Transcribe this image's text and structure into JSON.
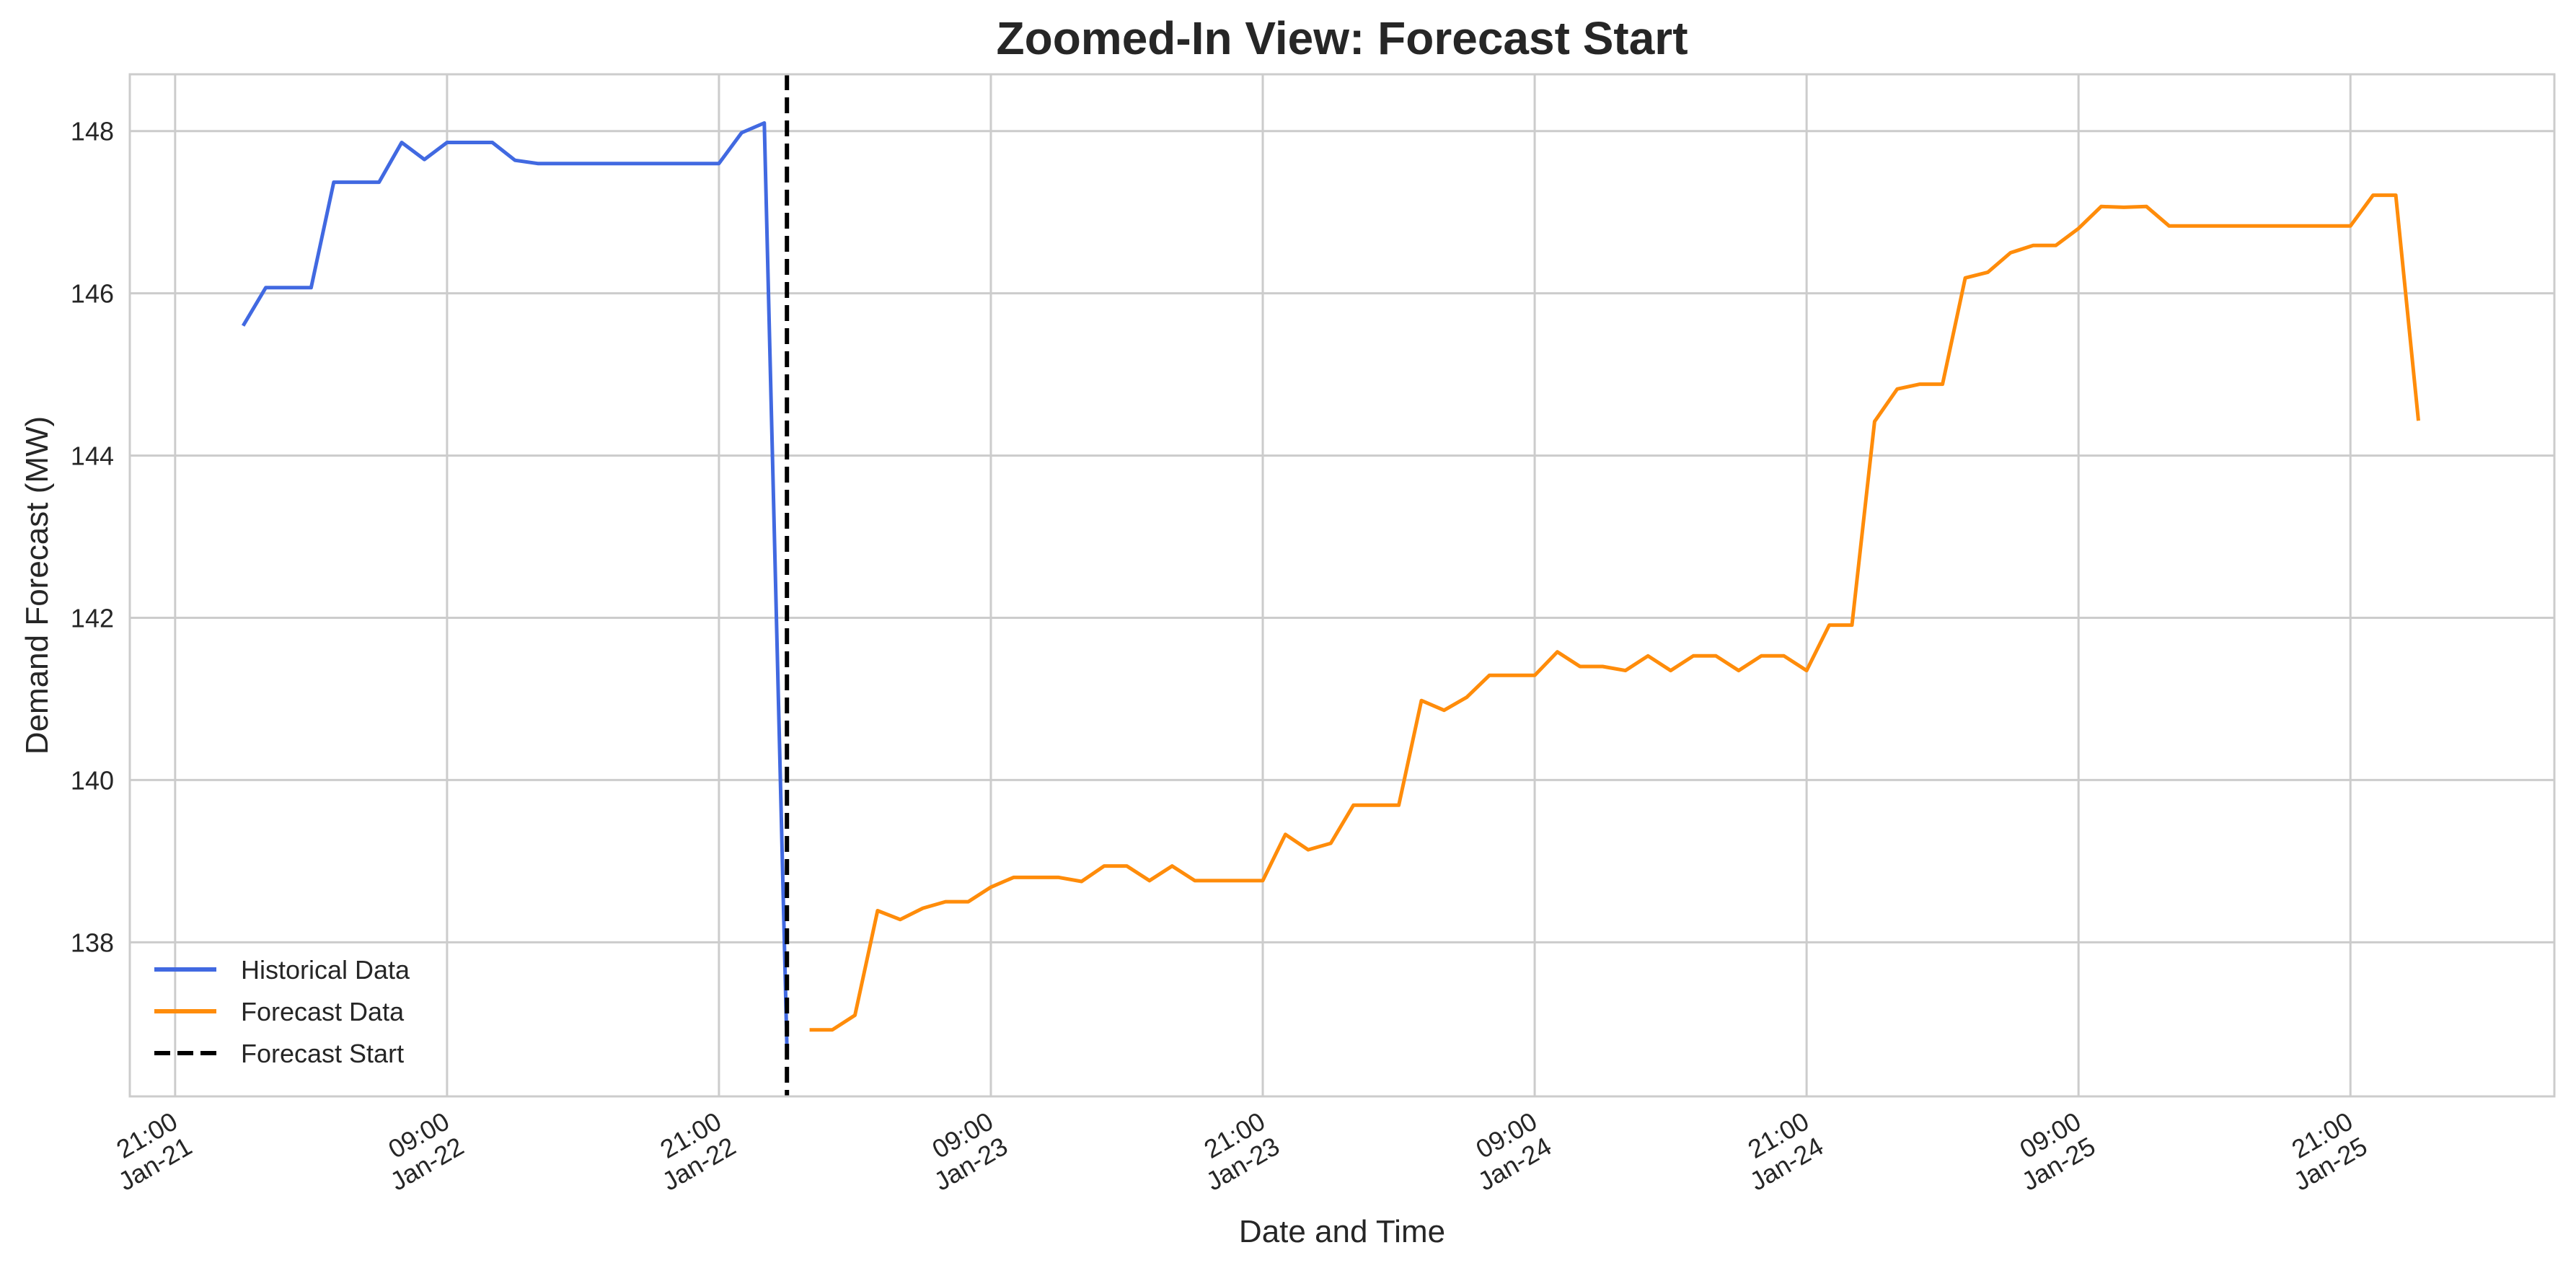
{
  "chart_data": {
    "type": "line",
    "title": "Zoomed-In View: Forecast Start",
    "xlabel": "Date and Time",
    "ylabel": "Demand Forecast (MW)",
    "x_unit": "datetime",
    "xlim": [
      "2025-01-21T19:00",
      "2025-01-26T06:00"
    ],
    "ylim": [
      136.1,
      148.7
    ],
    "y_ticks": [
      138,
      140,
      142,
      144,
      146,
      148
    ],
    "x_ticks": [
      {
        "t": "2025-01-21T21:00",
        "line1": "21:00",
        "line2": "Jan-21"
      },
      {
        "t": "2025-01-22T09:00",
        "line1": "09:00",
        "line2": "Jan-22"
      },
      {
        "t": "2025-01-22T21:00",
        "line1": "21:00",
        "line2": "Jan-22"
      },
      {
        "t": "2025-01-23T09:00",
        "line1": "09:00",
        "line2": "Jan-23"
      },
      {
        "t": "2025-01-23T21:00",
        "line1": "21:00",
        "line2": "Jan-23"
      },
      {
        "t": "2025-01-24T09:00",
        "line1": "09:00",
        "line2": "Jan-24"
      },
      {
        "t": "2025-01-24T21:00",
        "line1": "21:00",
        "line2": "Jan-24"
      },
      {
        "t": "2025-01-25T09:00",
        "line1": "09:00",
        "line2": "Jan-25"
      },
      {
        "t": "2025-01-25T21:00",
        "line1": "21:00",
        "line2": "Jan-25"
      }
    ],
    "grid": true,
    "legend_position": "bottom-left",
    "series": [
      {
        "name": "Historical Data",
        "color": "#4169e1",
        "style": "solid",
        "points": [
          [
            "2025-01-22T00:00",
            145.6
          ],
          [
            "2025-01-22T01:00",
            146.07
          ],
          [
            "2025-01-22T02:00",
            146.07
          ],
          [
            "2025-01-22T03:00",
            146.07
          ],
          [
            "2025-01-22T04:00",
            147.37
          ],
          [
            "2025-01-22T05:00",
            147.37
          ],
          [
            "2025-01-22T06:00",
            147.37
          ],
          [
            "2025-01-22T07:00",
            147.86
          ],
          [
            "2025-01-22T08:00",
            147.65
          ],
          [
            "2025-01-22T09:00",
            147.86
          ],
          [
            "2025-01-22T10:00",
            147.86
          ],
          [
            "2025-01-22T11:00",
            147.86
          ],
          [
            "2025-01-22T12:00",
            147.64
          ],
          [
            "2025-01-22T13:00",
            147.6
          ],
          [
            "2025-01-22T14:00",
            147.6
          ],
          [
            "2025-01-22T15:00",
            147.6
          ],
          [
            "2025-01-22T16:00",
            147.6
          ],
          [
            "2025-01-22T17:00",
            147.6
          ],
          [
            "2025-01-22T18:00",
            147.6
          ],
          [
            "2025-01-22T19:00",
            147.6
          ],
          [
            "2025-01-22T20:00",
            147.6
          ],
          [
            "2025-01-22T21:00",
            147.6
          ],
          [
            "2025-01-22T22:00",
            147.98
          ],
          [
            "2025-01-22T23:00",
            148.1
          ],
          [
            "2025-01-23T00:00",
            136.7
          ]
        ]
      },
      {
        "name": "Forecast Data",
        "color": "#ff8c0a",
        "style": "solid",
        "points": [
          [
            "2025-01-23T01:00",
            136.92
          ],
          [
            "2025-01-23T02:00",
            136.92
          ],
          [
            "2025-01-23T03:00",
            137.1
          ],
          [
            "2025-01-23T04:00",
            138.39
          ],
          [
            "2025-01-23T05:00",
            138.28
          ],
          [
            "2025-01-23T06:00",
            138.42
          ],
          [
            "2025-01-23T07:00",
            138.5
          ],
          [
            "2025-01-23T08:00",
            138.5
          ],
          [
            "2025-01-23T09:00",
            138.68
          ],
          [
            "2025-01-23T10:00",
            138.8
          ],
          [
            "2025-01-23T11:00",
            138.8
          ],
          [
            "2025-01-23T12:00",
            138.8
          ],
          [
            "2025-01-23T13:00",
            138.75
          ],
          [
            "2025-01-23T14:00",
            138.94
          ],
          [
            "2025-01-23T15:00",
            138.94
          ],
          [
            "2025-01-23T16:00",
            138.76
          ],
          [
            "2025-01-23T17:00",
            138.94
          ],
          [
            "2025-01-23T18:00",
            138.76
          ],
          [
            "2025-01-23T19:00",
            138.76
          ],
          [
            "2025-01-23T20:00",
            138.76
          ],
          [
            "2025-01-23T21:00",
            138.76
          ],
          [
            "2025-01-23T22:00",
            139.33
          ],
          [
            "2025-01-23T23:00",
            139.14
          ],
          [
            "2025-01-24T00:00",
            139.22
          ],
          [
            "2025-01-24T01:00",
            139.69
          ],
          [
            "2025-01-24T02:00",
            139.69
          ],
          [
            "2025-01-24T03:00",
            139.69
          ],
          [
            "2025-01-24T04:00",
            140.98
          ],
          [
            "2025-01-24T05:00",
            140.86
          ],
          [
            "2025-01-24T06:00",
            141.02
          ],
          [
            "2025-01-24T07:00",
            141.29
          ],
          [
            "2025-01-24T08:00",
            141.29
          ],
          [
            "2025-01-24T09:00",
            141.29
          ],
          [
            "2025-01-24T10:00",
            141.58
          ],
          [
            "2025-01-24T11:00",
            141.4
          ],
          [
            "2025-01-24T12:00",
            141.4
          ],
          [
            "2025-01-24T13:00",
            141.35
          ],
          [
            "2025-01-24T14:00",
            141.53
          ],
          [
            "2025-01-24T15:00",
            141.35
          ],
          [
            "2025-01-24T16:00",
            141.53
          ],
          [
            "2025-01-24T17:00",
            141.53
          ],
          [
            "2025-01-24T18:00",
            141.35
          ],
          [
            "2025-01-24T19:00",
            141.53
          ],
          [
            "2025-01-24T20:00",
            141.53
          ],
          [
            "2025-01-24T21:00",
            141.35
          ],
          [
            "2025-01-24T22:00",
            141.91
          ],
          [
            "2025-01-24T23:00",
            141.91
          ],
          [
            "2025-01-25T00:00",
            144.42
          ],
          [
            "2025-01-25T01:00",
            144.82
          ],
          [
            "2025-01-25T02:00",
            144.88
          ],
          [
            "2025-01-25T03:00",
            144.88
          ],
          [
            "2025-01-25T04:00",
            146.19
          ],
          [
            "2025-01-25T05:00",
            146.26
          ],
          [
            "2025-01-25T06:00",
            146.5
          ],
          [
            "2025-01-25T07:00",
            146.59
          ],
          [
            "2025-01-25T08:00",
            146.59
          ],
          [
            "2025-01-25T09:00",
            146.8
          ],
          [
            "2025-01-25T10:00",
            147.07
          ],
          [
            "2025-01-25T11:00",
            147.06
          ],
          [
            "2025-01-25T12:00",
            147.07
          ],
          [
            "2025-01-25T13:00",
            146.83
          ],
          [
            "2025-01-25T14:00",
            146.83
          ],
          [
            "2025-01-25T15:00",
            146.83
          ],
          [
            "2025-01-25T16:00",
            146.83
          ],
          [
            "2025-01-25T17:00",
            146.83
          ],
          [
            "2025-01-25T18:00",
            146.83
          ],
          [
            "2025-01-25T19:00",
            146.83
          ],
          [
            "2025-01-25T20:00",
            146.83
          ],
          [
            "2025-01-25T21:00",
            146.83
          ],
          [
            "2025-01-25T22:00",
            147.21
          ],
          [
            "2025-01-25T23:00",
            147.21
          ],
          [
            "2025-01-26T00:00",
            144.43
          ]
        ]
      },
      {
        "name": "Forecast Start",
        "color": "#000000",
        "style": "dashed",
        "vline_x": "2025-01-23T00:00"
      }
    ]
  }
}
